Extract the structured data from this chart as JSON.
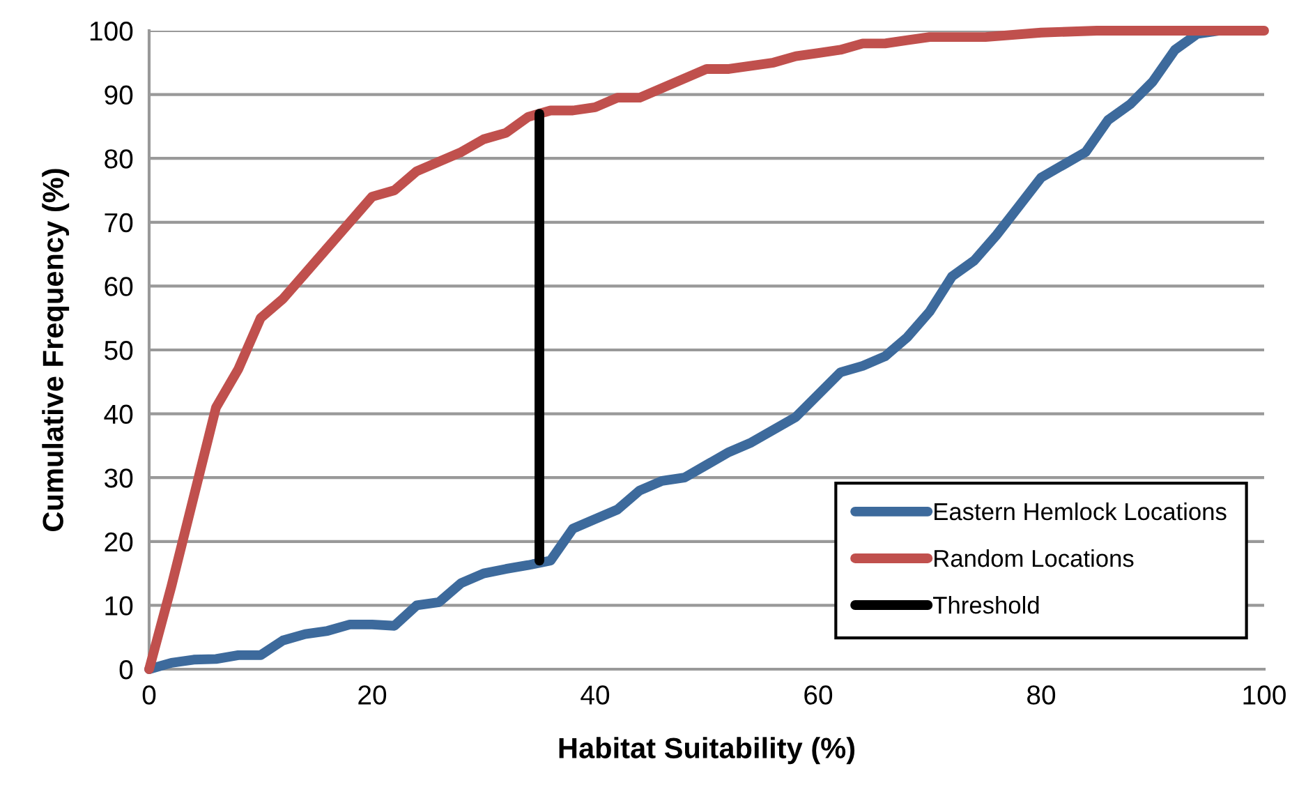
{
  "chart_data": {
    "type": "line",
    "xlabel": "Habitat Suitability (%)",
    "ylabel": "Cumulative Frequency (%)",
    "xlim": [
      0,
      100
    ],
    "xticks": [
      0,
      20,
      40,
      60,
      80,
      100
    ],
    "ylim": [
      0,
      100
    ],
    "yticks": [
      0,
      10,
      20,
      30,
      40,
      50,
      60,
      70,
      80,
      90,
      100
    ],
    "grid": "y",
    "legend": "bottom right",
    "marker": "none",
    "line_style": "solid",
    "series": [
      {
        "name": "Eastern Hemlock Locations",
        "color": "#3d6a9c",
        "x": [
          0,
          2,
          4,
          6,
          8,
          10,
          12,
          14,
          16,
          18,
          20,
          22,
          24,
          26,
          28,
          30,
          32,
          34,
          36,
          38,
          40,
          42,
          44,
          46,
          48,
          50,
          52,
          54,
          56,
          58,
          60,
          62,
          64,
          66,
          68,
          70,
          72,
          74,
          76,
          78,
          80,
          82,
          84,
          86,
          88,
          90,
          92,
          94,
          96
        ],
        "values": [
          0,
          1,
          1.5,
          1.6,
          2.2,
          2.2,
          4.5,
          5.5,
          6,
          7,
          7,
          6.8,
          10,
          10.5,
          13.5,
          15,
          15.7,
          16.3,
          17,
          22,
          23.5,
          25,
          28,
          29.5,
          30,
          32,
          34,
          35.5,
          37.5,
          39.5,
          43,
          46.5,
          47.5,
          49,
          52,
          56,
          61.5,
          64,
          68,
          72.5,
          77,
          79,
          81,
          86,
          88.5,
          92,
          97,
          99.5,
          100
        ]
      },
      {
        "name": "Random Locations",
        "color": "#c0504d",
        "x": [
          0,
          2,
          4,
          6,
          8,
          10,
          12,
          14,
          16,
          18,
          20,
          22,
          24,
          26,
          28,
          30,
          32,
          34,
          36,
          38,
          40,
          42,
          44,
          46,
          48,
          50,
          52,
          54,
          56,
          58,
          60,
          62,
          64,
          66,
          68,
          70,
          75,
          80,
          85,
          90,
          100
        ],
        "values": [
          0,
          13,
          27,
          41,
          47,
          55,
          58,
          62,
          66,
          70,
          74,
          75,
          78,
          79.5,
          81,
          83,
          84,
          86.5,
          87.5,
          87.5,
          88,
          89.5,
          89.5,
          91,
          92.5,
          94,
          94,
          94.5,
          95,
          96,
          96.5,
          97,
          98,
          98,
          98.5,
          99,
          99,
          99.7,
          100,
          100,
          100
        ]
      },
      {
        "name": "Threshold",
        "color": "#000000",
        "x": [
          35,
          35
        ],
        "values": [
          17,
          87
        ]
      }
    ]
  }
}
